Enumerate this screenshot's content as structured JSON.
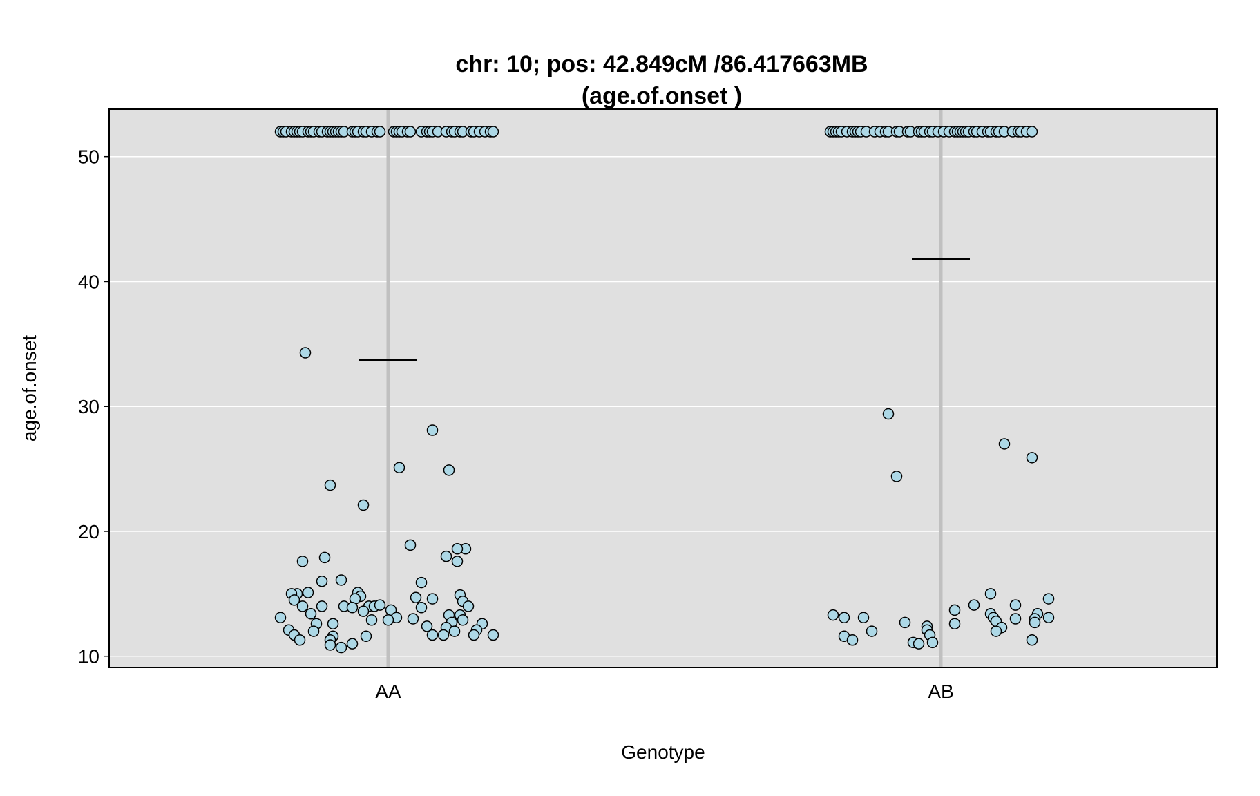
{
  "chart_data": {
    "type": "scatter",
    "title_line1": "chr: 10; pos: 42.849cM /86.417663MB",
    "title_line2": "(age.of.onset )",
    "xlabel": "Genotype",
    "ylabel": "age.of.onset",
    "categories": [
      "AA",
      "AB"
    ],
    "ylim": [
      9.1,
      53.8
    ],
    "yticks": [
      10,
      20,
      30,
      40,
      50
    ],
    "grid": true,
    "colors": {
      "panel": "#e0e0e0",
      "grid": "#ffffff",
      "center_line": "#c0c0c0",
      "point_fill": "#add8e6",
      "point_stroke": "#000000",
      "mean_line": "#000000"
    },
    "series": [
      {
        "category": "AA",
        "mean": 33.7,
        "points": [
          {
            "dx": -0.39,
            "y": 52
          },
          {
            "dx": -0.38,
            "y": 52
          },
          {
            "dx": -0.37,
            "y": 52
          },
          {
            "dx": -0.35,
            "y": 52
          },
          {
            "dx": -0.34,
            "y": 52
          },
          {
            "dx": -0.33,
            "y": 52
          },
          {
            "dx": -0.32,
            "y": 52
          },
          {
            "dx": -0.31,
            "y": 52
          },
          {
            "dx": -0.29,
            "y": 52
          },
          {
            "dx": -0.28,
            "y": 52
          },
          {
            "dx": -0.27,
            "y": 52
          },
          {
            "dx": -0.25,
            "y": 52
          },
          {
            "dx": -0.24,
            "y": 52
          },
          {
            "dx": -0.22,
            "y": 52
          },
          {
            "dx": -0.21,
            "y": 52
          },
          {
            "dx": -0.2,
            "y": 52
          },
          {
            "dx": -0.19,
            "y": 52
          },
          {
            "dx": -0.18,
            "y": 52
          },
          {
            "dx": -0.17,
            "y": 52
          },
          {
            "dx": -0.16,
            "y": 52
          },
          {
            "dx": -0.13,
            "y": 52
          },
          {
            "dx": -0.12,
            "y": 52
          },
          {
            "dx": -0.11,
            "y": 52
          },
          {
            "dx": -0.09,
            "y": 52
          },
          {
            "dx": -0.08,
            "y": 52
          },
          {
            "dx": -0.06,
            "y": 52
          },
          {
            "dx": -0.04,
            "y": 52
          },
          {
            "dx": -0.03,
            "y": 52
          },
          {
            "dx": 0.02,
            "y": 52
          },
          {
            "dx": 0.03,
            "y": 52
          },
          {
            "dx": 0.04,
            "y": 52
          },
          {
            "dx": 0.05,
            "y": 52
          },
          {
            "dx": 0.07,
            "y": 52
          },
          {
            "dx": 0.08,
            "y": 52
          },
          {
            "dx": 0.12,
            "y": 52
          },
          {
            "dx": 0.14,
            "y": 52
          },
          {
            "dx": 0.15,
            "y": 52
          },
          {
            "dx": 0.16,
            "y": 52
          },
          {
            "dx": 0.18,
            "y": 52
          },
          {
            "dx": 0.21,
            "y": 52
          },
          {
            "dx": 0.23,
            "y": 52
          },
          {
            "dx": 0.24,
            "y": 52
          },
          {
            "dx": 0.26,
            "y": 52
          },
          {
            "dx": 0.27,
            "y": 52
          },
          {
            "dx": 0.3,
            "y": 52
          },
          {
            "dx": 0.31,
            "y": 52
          },
          {
            "dx": 0.33,
            "y": 52
          },
          {
            "dx": 0.35,
            "y": 52
          },
          {
            "dx": 0.37,
            "y": 52
          },
          {
            "dx": 0.38,
            "y": 52
          },
          {
            "dx": -0.3,
            "y": 34.3
          },
          {
            "dx": 0.16,
            "y": 28.1
          },
          {
            "dx": 0.04,
            "y": 25.1
          },
          {
            "dx": 0.22,
            "y": 24.9
          },
          {
            "dx": -0.21,
            "y": 23.7
          },
          {
            "dx": -0.09,
            "y": 22.1
          },
          {
            "dx": 0.08,
            "y": 18.9
          },
          {
            "dx": 0.28,
            "y": 18.6
          },
          {
            "dx": 0.25,
            "y": 18.6
          },
          {
            "dx": 0.21,
            "y": 18.0
          },
          {
            "dx": -0.23,
            "y": 17.9
          },
          {
            "dx": -0.31,
            "y": 17.6
          },
          {
            "dx": 0.25,
            "y": 17.6
          },
          {
            "dx": -0.17,
            "y": 16.1
          },
          {
            "dx": -0.24,
            "y": 16.0
          },
          {
            "dx": 0.12,
            "y": 15.9
          },
          {
            "dx": -0.33,
            "y": 15.0
          },
          {
            "dx": -0.35,
            "y": 15.0
          },
          {
            "dx": -0.29,
            "y": 15.1
          },
          {
            "dx": -0.11,
            "y": 15.1
          },
          {
            "dx": 0.26,
            "y": 14.9
          },
          {
            "dx": -0.1,
            "y": 14.8
          },
          {
            "dx": 0.1,
            "y": 14.7
          },
          {
            "dx": -0.12,
            "y": 14.6
          },
          {
            "dx": 0.16,
            "y": 14.6
          },
          {
            "dx": -0.34,
            "y": 14.5
          },
          {
            "dx": 0.27,
            "y": 14.4
          },
          {
            "dx": -0.31,
            "y": 14.0
          },
          {
            "dx": -0.24,
            "y": 14.0
          },
          {
            "dx": -0.16,
            "y": 14.0
          },
          {
            "dx": -0.13,
            "y": 13.9
          },
          {
            "dx": -0.07,
            "y": 14.0
          },
          {
            "dx": -0.05,
            "y": 14.0
          },
          {
            "dx": -0.03,
            "y": 14.1
          },
          {
            "dx": 0.12,
            "y": 13.9
          },
          {
            "dx": 0.29,
            "y": 14.0
          },
          {
            "dx": -0.09,
            "y": 13.6
          },
          {
            "dx": 0.01,
            "y": 13.7
          },
          {
            "dx": -0.28,
            "y": 13.4
          },
          {
            "dx": 0.22,
            "y": 13.3
          },
          {
            "dx": 0.26,
            "y": 13.3
          },
          {
            "dx": -0.39,
            "y": 13.1
          },
          {
            "dx": 0.03,
            "y": 13.1
          },
          {
            "dx": -0.06,
            "y": 12.9
          },
          {
            "dx": 0.0,
            "y": 12.9
          },
          {
            "dx": 0.09,
            "y": 13.0
          },
          {
            "dx": 0.27,
            "y": 12.9
          },
          {
            "dx": 0.23,
            "y": 12.7
          },
          {
            "dx": -0.26,
            "y": 12.6
          },
          {
            "dx": -0.2,
            "y": 12.6
          },
          {
            "dx": 0.14,
            "y": 12.4
          },
          {
            "dx": 0.21,
            "y": 12.3
          },
          {
            "dx": 0.34,
            "y": 12.6
          },
          {
            "dx": -0.36,
            "y": 12.1
          },
          {
            "dx": -0.27,
            "y": 12.0
          },
          {
            "dx": 0.24,
            "y": 12.0
          },
          {
            "dx": 0.32,
            "y": 12.1
          },
          {
            "dx": -0.34,
            "y": 11.7
          },
          {
            "dx": -0.2,
            "y": 11.6
          },
          {
            "dx": -0.08,
            "y": 11.6
          },
          {
            "dx": 0.16,
            "y": 11.7
          },
          {
            "dx": 0.2,
            "y": 11.7
          },
          {
            "dx": 0.31,
            "y": 11.7
          },
          {
            "dx": 0.38,
            "y": 11.7
          },
          {
            "dx": -0.32,
            "y": 11.3
          },
          {
            "dx": -0.21,
            "y": 11.3
          },
          {
            "dx": -0.21,
            "y": 10.9
          },
          {
            "dx": -0.17,
            "y": 10.7
          },
          {
            "dx": -0.13,
            "y": 11.0
          }
        ]
      },
      {
        "category": "AB",
        "mean": 41.8,
        "points": [
          {
            "dx": -0.4,
            "y": 52
          },
          {
            "dx": -0.39,
            "y": 52
          },
          {
            "dx": -0.38,
            "y": 52
          },
          {
            "dx": -0.37,
            "y": 52
          },
          {
            "dx": -0.36,
            "y": 52
          },
          {
            "dx": -0.34,
            "y": 52
          },
          {
            "dx": -0.32,
            "y": 52
          },
          {
            "dx": -0.31,
            "y": 52
          },
          {
            "dx": -0.3,
            "y": 52
          },
          {
            "dx": -0.29,
            "y": 52
          },
          {
            "dx": -0.27,
            "y": 52
          },
          {
            "dx": -0.24,
            "y": 52
          },
          {
            "dx": -0.22,
            "y": 52
          },
          {
            "dx": -0.2,
            "y": 52
          },
          {
            "dx": -0.19,
            "y": 52
          },
          {
            "dx": -0.16,
            "y": 52
          },
          {
            "dx": -0.15,
            "y": 52
          },
          {
            "dx": -0.12,
            "y": 52
          },
          {
            "dx": -0.11,
            "y": 52
          },
          {
            "dx": -0.08,
            "y": 52
          },
          {
            "dx": -0.07,
            "y": 52
          },
          {
            "dx": -0.06,
            "y": 52
          },
          {
            "dx": -0.04,
            "y": 52
          },
          {
            "dx": -0.03,
            "y": 52
          },
          {
            "dx": -0.01,
            "y": 52
          },
          {
            "dx": 0.01,
            "y": 52
          },
          {
            "dx": 0.03,
            "y": 52
          },
          {
            "dx": 0.05,
            "y": 52
          },
          {
            "dx": 0.06,
            "y": 52
          },
          {
            "dx": 0.07,
            "y": 52
          },
          {
            "dx": 0.08,
            "y": 52
          },
          {
            "dx": 0.09,
            "y": 52
          },
          {
            "dx": 0.1,
            "y": 52
          },
          {
            "dx": 0.12,
            "y": 52
          },
          {
            "dx": 0.13,
            "y": 52
          },
          {
            "dx": 0.15,
            "y": 52
          },
          {
            "dx": 0.17,
            "y": 52
          },
          {
            "dx": 0.18,
            "y": 52
          },
          {
            "dx": 0.2,
            "y": 52
          },
          {
            "dx": 0.21,
            "y": 52
          },
          {
            "dx": 0.23,
            "y": 52
          },
          {
            "dx": 0.26,
            "y": 52
          },
          {
            "dx": 0.28,
            "y": 52
          },
          {
            "dx": 0.29,
            "y": 52
          },
          {
            "dx": 0.31,
            "y": 52
          },
          {
            "dx": 0.33,
            "y": 52
          },
          {
            "dx": -0.19,
            "y": 29.4
          },
          {
            "dx": 0.23,
            "y": 27.0
          },
          {
            "dx": 0.33,
            "y": 25.9
          },
          {
            "dx": -0.16,
            "y": 24.4
          },
          {
            "dx": 0.18,
            "y": 15.0
          },
          {
            "dx": 0.39,
            "y": 14.6
          },
          {
            "dx": 0.27,
            "y": 14.1
          },
          {
            "dx": 0.12,
            "y": 14.1
          },
          {
            "dx": 0.05,
            "y": 13.7
          },
          {
            "dx": 0.18,
            "y": 13.4
          },
          {
            "dx": 0.35,
            "y": 13.4
          },
          {
            "dx": -0.39,
            "y": 13.3
          },
          {
            "dx": -0.35,
            "y": 13.1
          },
          {
            "dx": -0.28,
            "y": 13.1
          },
          {
            "dx": 0.19,
            "y": 13.1
          },
          {
            "dx": 0.27,
            "y": 13.0
          },
          {
            "dx": 0.34,
            "y": 13.0
          },
          {
            "dx": 0.39,
            "y": 13.1
          },
          {
            "dx": 0.2,
            "y": 12.8
          },
          {
            "dx": 0.34,
            "y": 12.7
          },
          {
            "dx": -0.13,
            "y": 12.7
          },
          {
            "dx": 0.05,
            "y": 12.6
          },
          {
            "dx": -0.05,
            "y": 12.4
          },
          {
            "dx": 0.22,
            "y": 12.3
          },
          {
            "dx": -0.05,
            "y": 12.1
          },
          {
            "dx": -0.25,
            "y": 12.0
          },
          {
            "dx": 0.2,
            "y": 12.0
          },
          {
            "dx": -0.04,
            "y": 11.7
          },
          {
            "dx": -0.35,
            "y": 11.6
          },
          {
            "dx": -0.32,
            "y": 11.3
          },
          {
            "dx": 0.33,
            "y": 11.3
          },
          {
            "dx": -0.1,
            "y": 11.1
          },
          {
            "dx": -0.03,
            "y": 11.1
          },
          {
            "dx": -0.08,
            "y": 11.0
          }
        ]
      }
    ]
  }
}
